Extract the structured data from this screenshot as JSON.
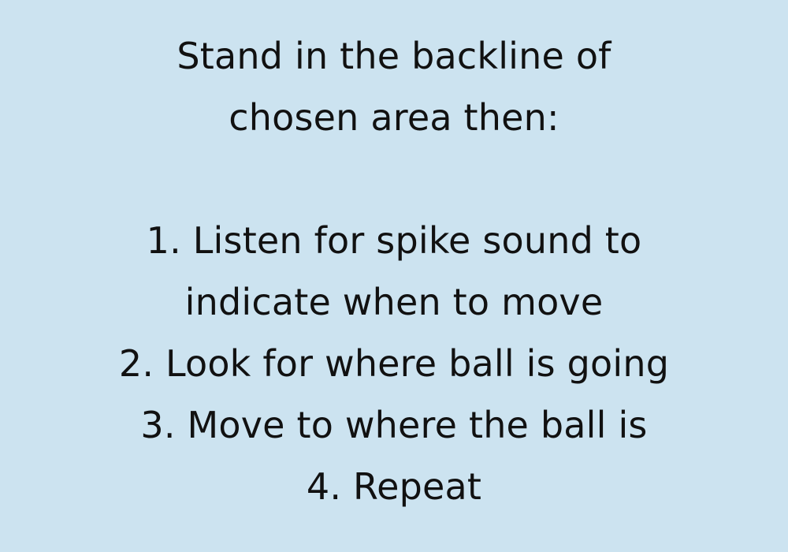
{
  "colors": {
    "background": "#cce3f0",
    "text": "#111111"
  },
  "instructions": {
    "heading_line_1": "Stand in the backline of",
    "heading_line_2": "chosen area then:",
    "steps": [
      {
        "line_1": "1. Listen for spike sound to",
        "line_2": "indicate when to move"
      },
      {
        "line_1": "2. Look for where ball is going"
      },
      {
        "line_1": "3. Move to where the ball is"
      },
      {
        "line_1": "4. Repeat"
      }
    ]
  }
}
